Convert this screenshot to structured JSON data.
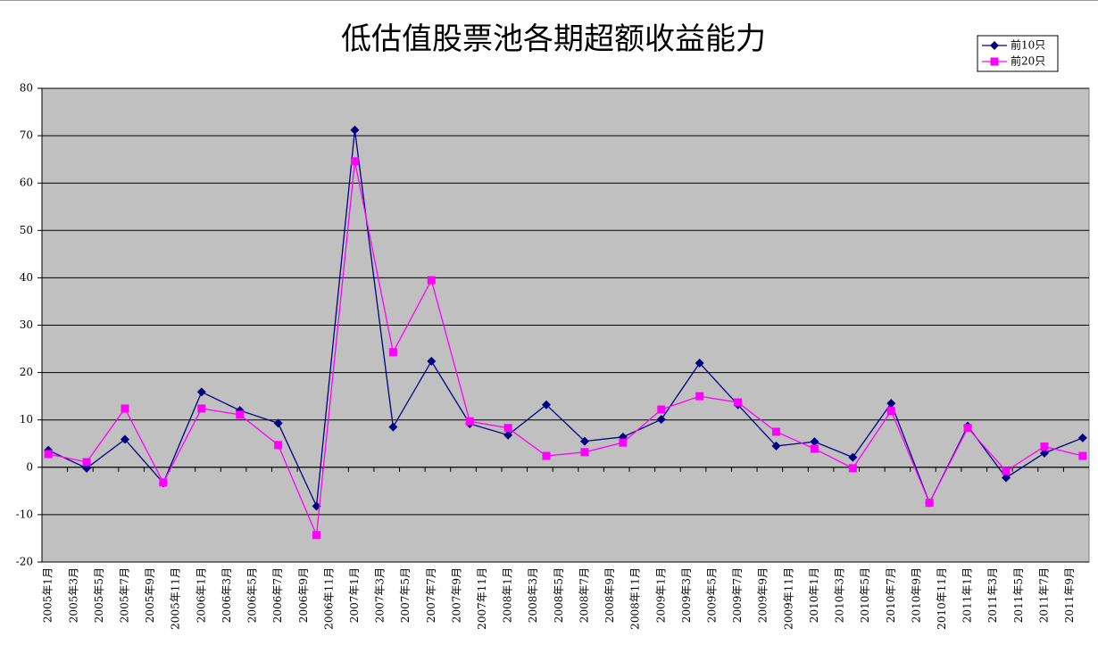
{
  "chart_data": {
    "type": "line",
    "title": "低估值股票池各期超额收益能力",
    "categories": [
      "2005年1月",
      null,
      "2005年3月",
      null,
      "2005年5月",
      null,
      "2005年7月",
      null,
      "2005年9月",
      null,
      "2005年11月",
      null,
      "2006年1月",
      null,
      "2006年3月",
      null,
      "2006年5月",
      null,
      "2006年7月",
      null,
      "2006年9月",
      null,
      "2006年11月",
      null,
      "2007年1月",
      null,
      "2007年3月",
      null,
      "2007年5月",
      null,
      "2007年7月",
      null,
      "2007年9月",
      null,
      "2007年11月",
      null,
      "2008年1月",
      null,
      "2008年3月",
      null,
      "2008年5月",
      null,
      "2008年7月",
      null,
      "2008年9月",
      null,
      "2008年11月",
      null,
      "2009年1月",
      null,
      "2009年3月",
      null,
      "2009年5月",
      null,
      "2009年7月",
      null,
      "2009年9月",
      null,
      "2009年11月",
      null,
      "2010年1月",
      null,
      "2010年3月",
      null,
      "2010年5月",
      null,
      "2010年7月",
      null,
      "2010年9月",
      null,
      "2010年11月",
      null,
      "2011年1月",
      null,
      "2011年3月",
      null,
      "2011年5月",
      null,
      "2011年7月",
      null,
      "2011年9月",
      null
    ],
    "series": [
      {
        "name": "前10只",
        "color": "#000080",
        "marker": "diamond",
        "values": [
          3.6,
          null,
          null,
          -0.2,
          null,
          null,
          5.9,
          null,
          null,
          -3.3,
          null,
          null,
          15.9,
          null,
          null,
          12,
          null,
          null,
          9.3,
          null,
          null,
          -8.2,
          null,
          null,
          71.2,
          null,
          null,
          8.5,
          null,
          null,
          22.4,
          null,
          null,
          9.2,
          null,
          null,
          6.8,
          null,
          null,
          13.2,
          null,
          null,
          5.5,
          null,
          null,
          6.4,
          null,
          null,
          10.1,
          null,
          null,
          22,
          null,
          null,
          13.2,
          null,
          null,
          4.5,
          null,
          null,
          5.4,
          null,
          null,
          2.1,
          null,
          null,
          13.5,
          null,
          null,
          -7.5,
          null,
          null,
          8.7,
          null,
          null,
          -2.2,
          null,
          null,
          3,
          null,
          null,
          6.2
        ]
      },
      {
        "name": "前20只",
        "color": "#ff00ff",
        "marker": "square",
        "values": [
          2.8,
          null,
          null,
          1.1,
          null,
          null,
          12.4,
          null,
          null,
          -3.2,
          null,
          null,
          12.4,
          null,
          null,
          11.1,
          null,
          null,
          4.7,
          null,
          null,
          -14.3,
          null,
          null,
          64.6,
          null,
          null,
          24.3,
          null,
          null,
          39.5,
          null,
          null,
          9.7,
          null,
          null,
          8.3,
          null,
          null,
          2.4,
          null,
          null,
          3.2,
          null,
          null,
          5.2,
          null,
          null,
          12.2,
          null,
          null,
          15,
          null,
          null,
          13.7,
          null,
          null,
          7.5,
          null,
          null,
          3.9,
          null,
          null,
          -0.2,
          null,
          null,
          11.9,
          null,
          null,
          -7.5,
          null,
          null,
          8.3,
          null,
          null,
          -0.8,
          null,
          null,
          4.4,
          null,
          null,
          2.4
        ]
      }
    ],
    "connect_nulls": true,
    "ylim": [
      -20,
      80
    ],
    "yticks": [
      -20,
      -10,
      0,
      10,
      20,
      30,
      40,
      50,
      60,
      70,
      80
    ],
    "grid": true,
    "legend": "top-right"
  }
}
